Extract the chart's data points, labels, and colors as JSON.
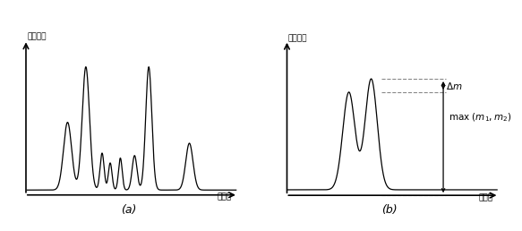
{
  "title_a": "(a)",
  "title_b": "(b)",
  "ylabel_cn": "信号强度",
  "xlabel_cn": "质荷比",
  "bg_color": "#ffffff",
  "line_color": "#000000",
  "arrow_color": "#000000",
  "dashed_color": "#888888",
  "peaks_a": [
    {
      "mu": 2.0,
      "sig": 0.2,
      "amp": 0.55
    },
    {
      "mu": 2.9,
      "sig": 0.18,
      "amp": 1.0
    },
    {
      "mu": 3.7,
      "sig": 0.1,
      "amp": 0.3
    },
    {
      "mu": 4.1,
      "sig": 0.09,
      "amp": 0.22
    },
    {
      "mu": 4.6,
      "sig": 0.09,
      "amp": 0.26
    },
    {
      "mu": 5.3,
      "sig": 0.12,
      "amp": 0.28
    },
    {
      "mu": 6.0,
      "sig": 0.15,
      "amp": 1.0
    },
    {
      "mu": 8.0,
      "sig": 0.18,
      "amp": 0.38
    }
  ],
  "peak_b1": {
    "mu": 3.0,
    "sig": 0.3,
    "amp": 0.88
  },
  "peak_b2": {
    "mu": 4.1,
    "sig": 0.3,
    "amp": 1.0
  },
  "xlim_a": [
    -0.3,
    10.5
  ],
  "ylim_a": [
    -0.07,
    1.28
  ],
  "xlim_b": [
    -0.3,
    10.5
  ],
  "ylim_b": [
    -0.08,
    1.42
  ]
}
